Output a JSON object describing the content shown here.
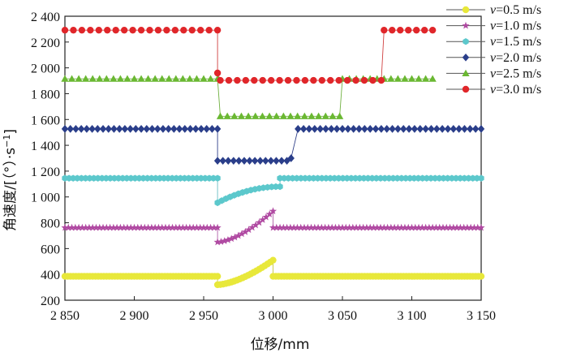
{
  "chart_data": {
    "type": "line",
    "title": "",
    "xlabel": "位移/mm",
    "ylabel": "角速度/[(°)·s⁻¹]",
    "ylabel_parts": {
      "main": "角速度/[（",
      "deg": "°",
      "mid": "）·s",
      "sup": "−1",
      "end": "]"
    },
    "xlim": [
      2850,
      3150
    ],
    "ylim": [
      200,
      2400
    ],
    "xticks": [
      2850,
      2900,
      2950,
      3000,
      3050,
      3100,
      3150
    ],
    "xtick_labels": [
      "2 850",
      "2 900",
      "2 950",
      "3 000",
      "3 050",
      "3 100",
      "3 150"
    ],
    "yticks": [
      200,
      400,
      600,
      800,
      1000,
      1200,
      1400,
      1600,
      1800,
      2000,
      2200,
      2400
    ],
    "ytick_labels": [
      "200",
      "400",
      "600",
      "800",
      "1 000",
      "1 200",
      "1 400",
      "1 600",
      "1 800",
      "2 000",
      "2 200",
      "2 400"
    ],
    "legend_position": "right",
    "series": [
      {
        "name": "v=0.5 m/s",
        "var": "v",
        "rest": "=0.5 m/s",
        "color": "#e8e83a",
        "line": "#c8c840",
        "marker": "circle",
        "segments": [
          {
            "start": 2850,
            "end": 2960,
            "step": 2,
            "from": 385,
            "to": 385
          },
          {
            "start": 2960,
            "end": 3000,
            "step": 2,
            "from": 320,
            "to": 510,
            "curve": true
          },
          {
            "start": 3000,
            "end": 3150,
            "step": 2,
            "from": 385,
            "to": 385
          }
        ]
      },
      {
        "name": "v=1.0 m/s",
        "var": "v",
        "rest": "=1.0 m/s",
        "color": "#b04aa2",
        "line": "#b060a8",
        "marker": "star",
        "segments": [
          {
            "start": 2850,
            "end": 2960,
            "step": 2.5,
            "from": 762,
            "to": 762
          },
          {
            "start": 2960,
            "end": 3000,
            "step": 2.5,
            "from": 650,
            "to": 890,
            "curve": true
          },
          {
            "start": 3000,
            "end": 3150,
            "step": 2.5,
            "from": 762,
            "to": 762
          }
        ]
      },
      {
        "name": "v=1.5 m/s",
        "var": "v",
        "rest": "=1.5 m/s",
        "color": "#5cc8cc",
        "line": "#6ac0c4",
        "marker": "hexagon",
        "segments": [
          {
            "start": 2850,
            "end": 2960,
            "step": 3,
            "from": 1145,
            "to": 1145
          },
          {
            "start": 2960,
            "end": 3005,
            "step": 3,
            "from": 955,
            "to": 1080,
            "curve": true,
            "ease": "out"
          },
          {
            "start": 3005,
            "end": 3150,
            "step": 3,
            "from": 1145,
            "to": 1145
          }
        ]
      },
      {
        "name": "v=2.0 m/s",
        "var": "v",
        "rest": "=2.0 m/s",
        "color": "#2a3e8a",
        "line": "#30408a",
        "marker": "diamond",
        "segments": [
          {
            "start": 2850,
            "end": 2960,
            "step": 4,
            "from": 1527,
            "to": 1527
          },
          {
            "start": 2960,
            "end": 3010,
            "step": 4,
            "from": 1280,
            "to": 1280
          },
          {
            "start": 3013,
            "end": 3013,
            "step": 4,
            "from": 1300,
            "to": 1300
          },
          {
            "start": 3018,
            "end": 3150,
            "step": 4,
            "from": 1527,
            "to": 1527
          }
        ]
      },
      {
        "name": "v=2.5 m/s",
        "var": "v",
        "rest": "=2.5 m/s",
        "color": "#6ab832",
        "line": "#70b040",
        "marker": "triangle",
        "segments": [
          {
            "start": 2850,
            "end": 2960,
            "step": 5,
            "from": 1915,
            "to": 1915
          },
          {
            "start": 2962,
            "end": 3048,
            "step": 5,
            "from": 1625,
            "to": 1625
          },
          {
            "start": 3050,
            "end": 3115,
            "step": 5,
            "from": 1915,
            "to": 1915
          }
        ]
      },
      {
        "name": "v=3.0 m/s",
        "var": "v",
        "rest": "=3.0 m/s",
        "color": "#e0262a",
        "line": "#d04040",
        "marker": "circle",
        "segments": [
          {
            "start": 2850,
            "end": 2960,
            "step": 6,
            "from": 2292,
            "to": 2292
          },
          {
            "start": 2960,
            "end": 2960,
            "step": 6,
            "from": 1960,
            "to": 1960
          },
          {
            "start": 2962,
            "end": 3078,
            "step": 6,
            "from": 1903,
            "to": 1903
          },
          {
            "start": 3080,
            "end": 3115,
            "step": 6,
            "from": 2292,
            "to": 2292
          }
        ]
      }
    ]
  }
}
